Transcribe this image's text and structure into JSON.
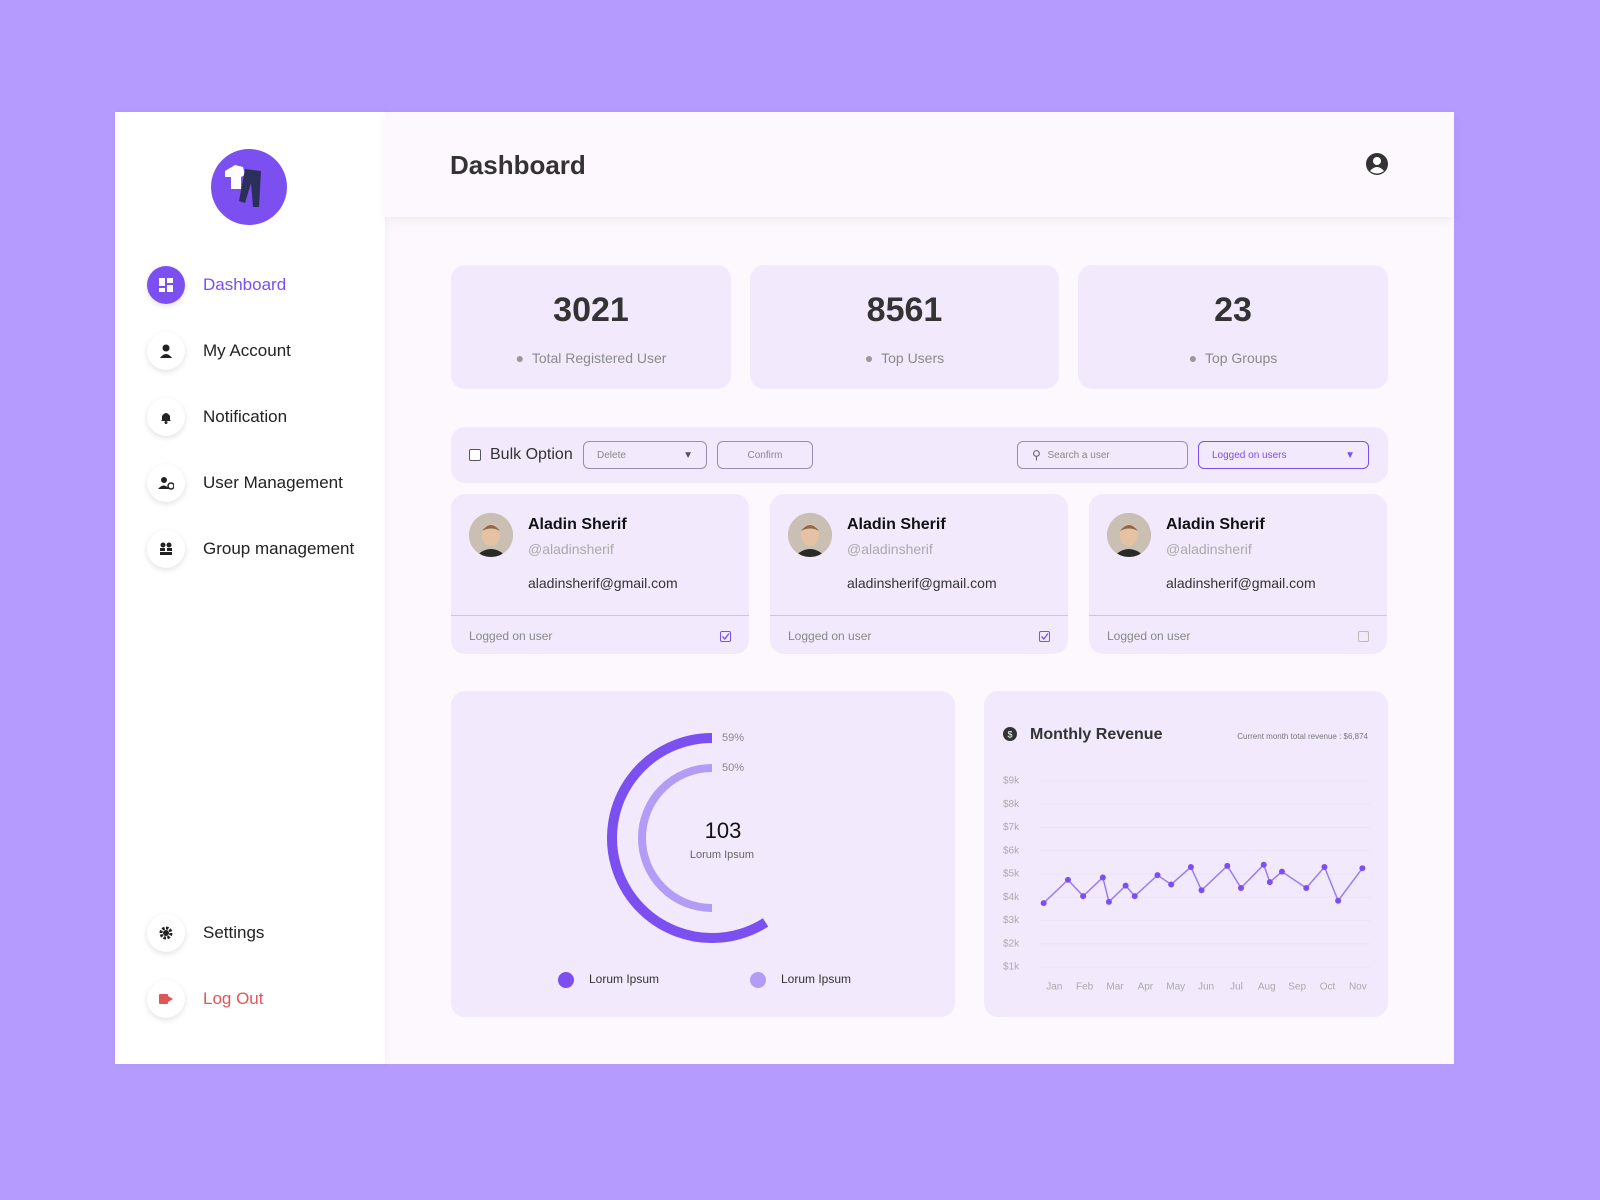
{
  "sidebar": {
    "nav": [
      "Dashboard",
      "My Account",
      "Notification",
      "User Management",
      "Group management"
    ],
    "bottom": [
      "Settings",
      "Log Out"
    ]
  },
  "header": {
    "title": "Dashboard"
  },
  "stats": [
    {
      "value": 3021,
      "label": "Total Registered User"
    },
    {
      "value": 8561,
      "label": "Top Users"
    },
    {
      "value": 23,
      "label": "Top Groups"
    }
  ],
  "toolbar": {
    "bulk_label": "Bulk Option",
    "action_select": "Delete",
    "confirm_button": "Confirm",
    "search_placeholder": "Search a user",
    "filter_select": "Logged on users"
  },
  "users": [
    {
      "name": "Aladin Sherif",
      "handle": "@aladinsherif",
      "email": "aladinsherif@gmail.com",
      "status": "Logged on user",
      "checked": true
    },
    {
      "name": "Aladin Sherif",
      "handle": "@aladinsherif",
      "email": "aladinsherif@gmail.com",
      "status": "Logged on user",
      "checked": true
    },
    {
      "name": "Aladin Sherif",
      "handle": "@aladinsherif",
      "email": "aladinsherif@gmail.com",
      "status": "Logged on user",
      "checked": false
    }
  ],
  "chart_data": [
    {
      "type": "radial",
      "center_value": 103,
      "center_label": "Lorum Ipsum",
      "series": [
        {
          "name": "Lorum Ipsum",
          "color": "#7b4ff0",
          "values": [
            59
          ],
          "value_labels": [
            "59%"
          ]
        },
        {
          "name": "Lorum Ipsum",
          "color": "#b39cf5",
          "values": [
            50
          ],
          "value_labels": [
            "50%"
          ]
        }
      ]
    },
    {
      "type": "line",
      "title": "Monthly Revenue",
      "subtitle": "Current month total revenue : $6,874",
      "color": "#9b7cf3",
      "point_color": "#7b4ff0",
      "x": [
        -0.35,
        0.45,
        0.95,
        1.6,
        1.8,
        2.35,
        2.65,
        3.4,
        3.85,
        4.5,
        4.85,
        5.7,
        6.15,
        6.9,
        7.1,
        7.5,
        8.3,
        8.9,
        9.35,
        10.15
      ],
      "values": [
        3750,
        4750,
        4050,
        4850,
        3800,
        4500,
        4050,
        4950,
        4550,
        5300,
        4300,
        5350,
        4400,
        5400,
        4650,
        5100,
        4400,
        5300,
        3850,
        5250
      ],
      "xlim": [
        -0.8,
        10.4
      ],
      "xticks": [
        {
          "value": 0,
          "label": "Jan"
        },
        {
          "value": 1,
          "label": "Feb"
        },
        {
          "value": 2,
          "label": "Mar"
        },
        {
          "value": 3,
          "label": "Apr"
        },
        {
          "value": 4,
          "label": "May"
        },
        {
          "value": 5,
          "label": "Jun"
        },
        {
          "value": 6,
          "label": "Jul"
        },
        {
          "value": 7,
          "label": "Aug"
        },
        {
          "value": 8,
          "label": "Sep"
        },
        {
          "value": 9,
          "label": "Oct"
        },
        {
          "value": 10,
          "label": "Nov"
        }
      ],
      "ylim": [
        1000,
        9000
      ],
      "yticks": [
        {
          "value": 1000,
          "label": "$1k"
        },
        {
          "value": 2000,
          "label": "$2k"
        },
        {
          "value": 3000,
          "label": "$3k"
        },
        {
          "value": 4000,
          "label": "$4k"
        },
        {
          "value": 5000,
          "label": "$5k"
        },
        {
          "value": 6000,
          "label": "$6k"
        },
        {
          "value": 7000,
          "label": "$7k"
        },
        {
          "value": 8000,
          "label": "$8k"
        },
        {
          "value": 9000,
          "label": "$9k"
        }
      ],
      "grid": true
    }
  ]
}
